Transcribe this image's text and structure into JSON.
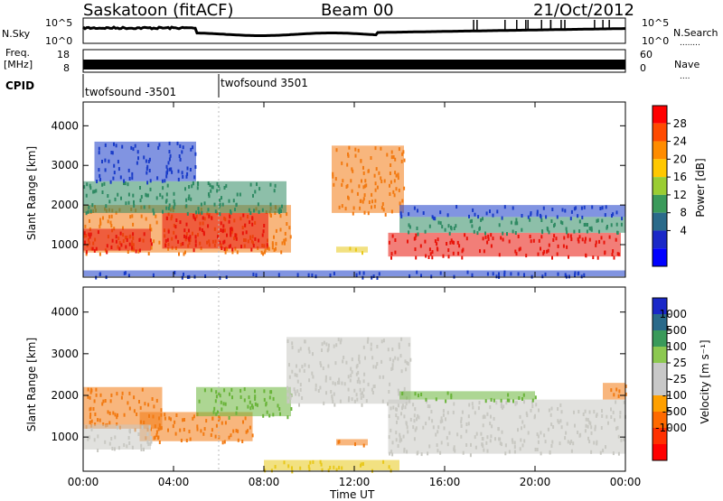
{
  "header": {
    "title_left": "Saskatoon (fitACF)",
    "title_center": "Beam 00",
    "title_right": "21/Oct/2012"
  },
  "nsky_panel": {
    "label": "N.Sky",
    "right_label": "N.Search",
    "ticks_left": [
      "10^5",
      "10^0"
    ],
    "ticks_right": [
      "10^5",
      "10^0"
    ]
  },
  "freq_panel": {
    "label_top": "Freq.",
    "label_bottom": "[MHz]",
    "ticks_left": [
      "18",
      "8"
    ],
    "ticks_right": [
      "60",
      "0"
    ],
    "right_label": "Nave"
  },
  "cpid_panel": {
    "label": "CPID",
    "programs": [
      "twofsound -3501",
      "twofsound 3501"
    ],
    "switch_time_hours": 6.0
  },
  "colors": {
    "red": "#e8140a",
    "orange": "#f27a12",
    "yellow": "#e8c81a",
    "green": "#6ab43a",
    "teal": "#2f8a63",
    "blue": "#1a3cc8",
    "grey": "#c8c8c2"
  },
  "power_colorbar": {
    "title": "Power [dB]",
    "ticks": [
      "28",
      "24",
      "20",
      "16",
      "12",
      "8",
      "4"
    ],
    "colors": [
      "#ff0000",
      "#ff4a00",
      "#ff8c00",
      "#ffc800",
      "#9acd32",
      "#3a9a5a",
      "#2a6a8a",
      "#1a28c8",
      "#0000ff"
    ]
  },
  "velocity_colorbar": {
    "title": "Velocity [m s⁻¹]",
    "ticks": [
      "1000",
      "500",
      "100",
      "25",
      "-25",
      "-100",
      "-500",
      "-1000"
    ],
    "colors": [
      "#1a28c8",
      "#2a6a8a",
      "#3a9a5a",
      "#8cc850",
      "#c8c8c8",
      "#c8c8c8",
      "#ffa000",
      "#ff6a00",
      "#ff3000",
      "#ff0000"
    ]
  },
  "chart_data": [
    {
      "type": "heatmap",
      "title": "Power",
      "ylabel": "Slant Range [km]",
      "xlabel": "",
      "x_ticks": [
        "00:00",
        "04:00",
        "08:00",
        "12:00",
        "16:00",
        "20:00",
        "00:00"
      ],
      "y_ticks": [
        "1000",
        "2000",
        "3000",
        "4000"
      ],
      "xlim_hours": [
        0,
        24
      ],
      "ylim_km": [
        180,
        4600
      ],
      "colorbar": "Power [dB]",
      "regions": [
        {
          "t0": 0.0,
          "t1": 9.2,
          "r0": 800,
          "r1": 2000,
          "color": "#f27a12"
        },
        {
          "t0": 3.5,
          "t1": 8.2,
          "r0": 900,
          "r1": 1800,
          "color": "#e8140a"
        },
        {
          "t0": 0.0,
          "t1": 3.0,
          "r0": 850,
          "r1": 1400,
          "color": "#e8140a"
        },
        {
          "t0": 0.0,
          "t1": 9.0,
          "r0": 1800,
          "r1": 2600,
          "color": "#2f8a63"
        },
        {
          "t0": 0.5,
          "t1": 5.0,
          "r0": 2600,
          "r1": 3600,
          "color": "#1a3cc8"
        },
        {
          "t0": 11.0,
          "t1": 14.2,
          "r0": 1800,
          "r1": 3500,
          "color": "#f27a12"
        },
        {
          "t0": 11.2,
          "t1": 12.6,
          "r0": 800,
          "r1": 950,
          "color": "#e8c81a"
        },
        {
          "t0": 13.5,
          "t1": 23.8,
          "r0": 700,
          "r1": 1300,
          "color": "#e8140a"
        },
        {
          "t0": 14.0,
          "t1": 24.0,
          "r0": 1300,
          "r1": 1700,
          "color": "#2f8a63"
        },
        {
          "t0": 14.0,
          "t1": 24.0,
          "r0": 1700,
          "r1": 2000,
          "color": "#1a3cc8"
        },
        {
          "t0": 0.0,
          "t1": 24.0,
          "r0": 200,
          "r1": 350,
          "color": "#1a3cc8"
        }
      ]
    },
    {
      "type": "heatmap",
      "title": "Velocity",
      "ylabel": "Slant Range [km]",
      "xlabel": "Time UT",
      "x_ticks": [
        "00:00",
        "04:00",
        "08:00",
        "12:00",
        "16:00",
        "20:00",
        "00:00"
      ],
      "y_ticks": [
        "1000",
        "2000",
        "3000",
        "4000"
      ],
      "xlim_hours": [
        0,
        24
      ],
      "ylim_km": [
        180,
        4600
      ],
      "colorbar": "Velocity [m s⁻¹]",
      "regions": [
        {
          "t0": 0.0,
          "t1": 3.5,
          "r0": 1200,
          "r1": 2200,
          "color": "#f27a12"
        },
        {
          "t0": 2.5,
          "t1": 7.5,
          "r0": 900,
          "r1": 1600,
          "color": "#f27a12"
        },
        {
          "t0": 5.0,
          "t1": 9.2,
          "r0": 1500,
          "r1": 2200,
          "color": "#6ab43a"
        },
        {
          "t0": 0.0,
          "t1": 3.0,
          "r0": 700,
          "r1": 1300,
          "color": "#c8c8c2"
        },
        {
          "t0": 9.0,
          "t1": 14.5,
          "r0": 1800,
          "r1": 3400,
          "color": "#c8c8c2"
        },
        {
          "t0": 11.2,
          "t1": 12.6,
          "r0": 800,
          "r1": 950,
          "color": "#f27a12"
        },
        {
          "t0": 13.5,
          "t1": 24.0,
          "r0": 600,
          "r1": 1900,
          "color": "#c8c8c2"
        },
        {
          "t0": 14.0,
          "t1": 20.0,
          "r0": 1900,
          "r1": 2100,
          "color": "#6ab43a"
        },
        {
          "t0": 23.0,
          "t1": 24.0,
          "r0": 1900,
          "r1": 2300,
          "color": "#f27a12"
        },
        {
          "t0": 8.0,
          "t1": 14.0,
          "r0": 200,
          "r1": 450,
          "color": "#e8c81a"
        }
      ]
    }
  ]
}
